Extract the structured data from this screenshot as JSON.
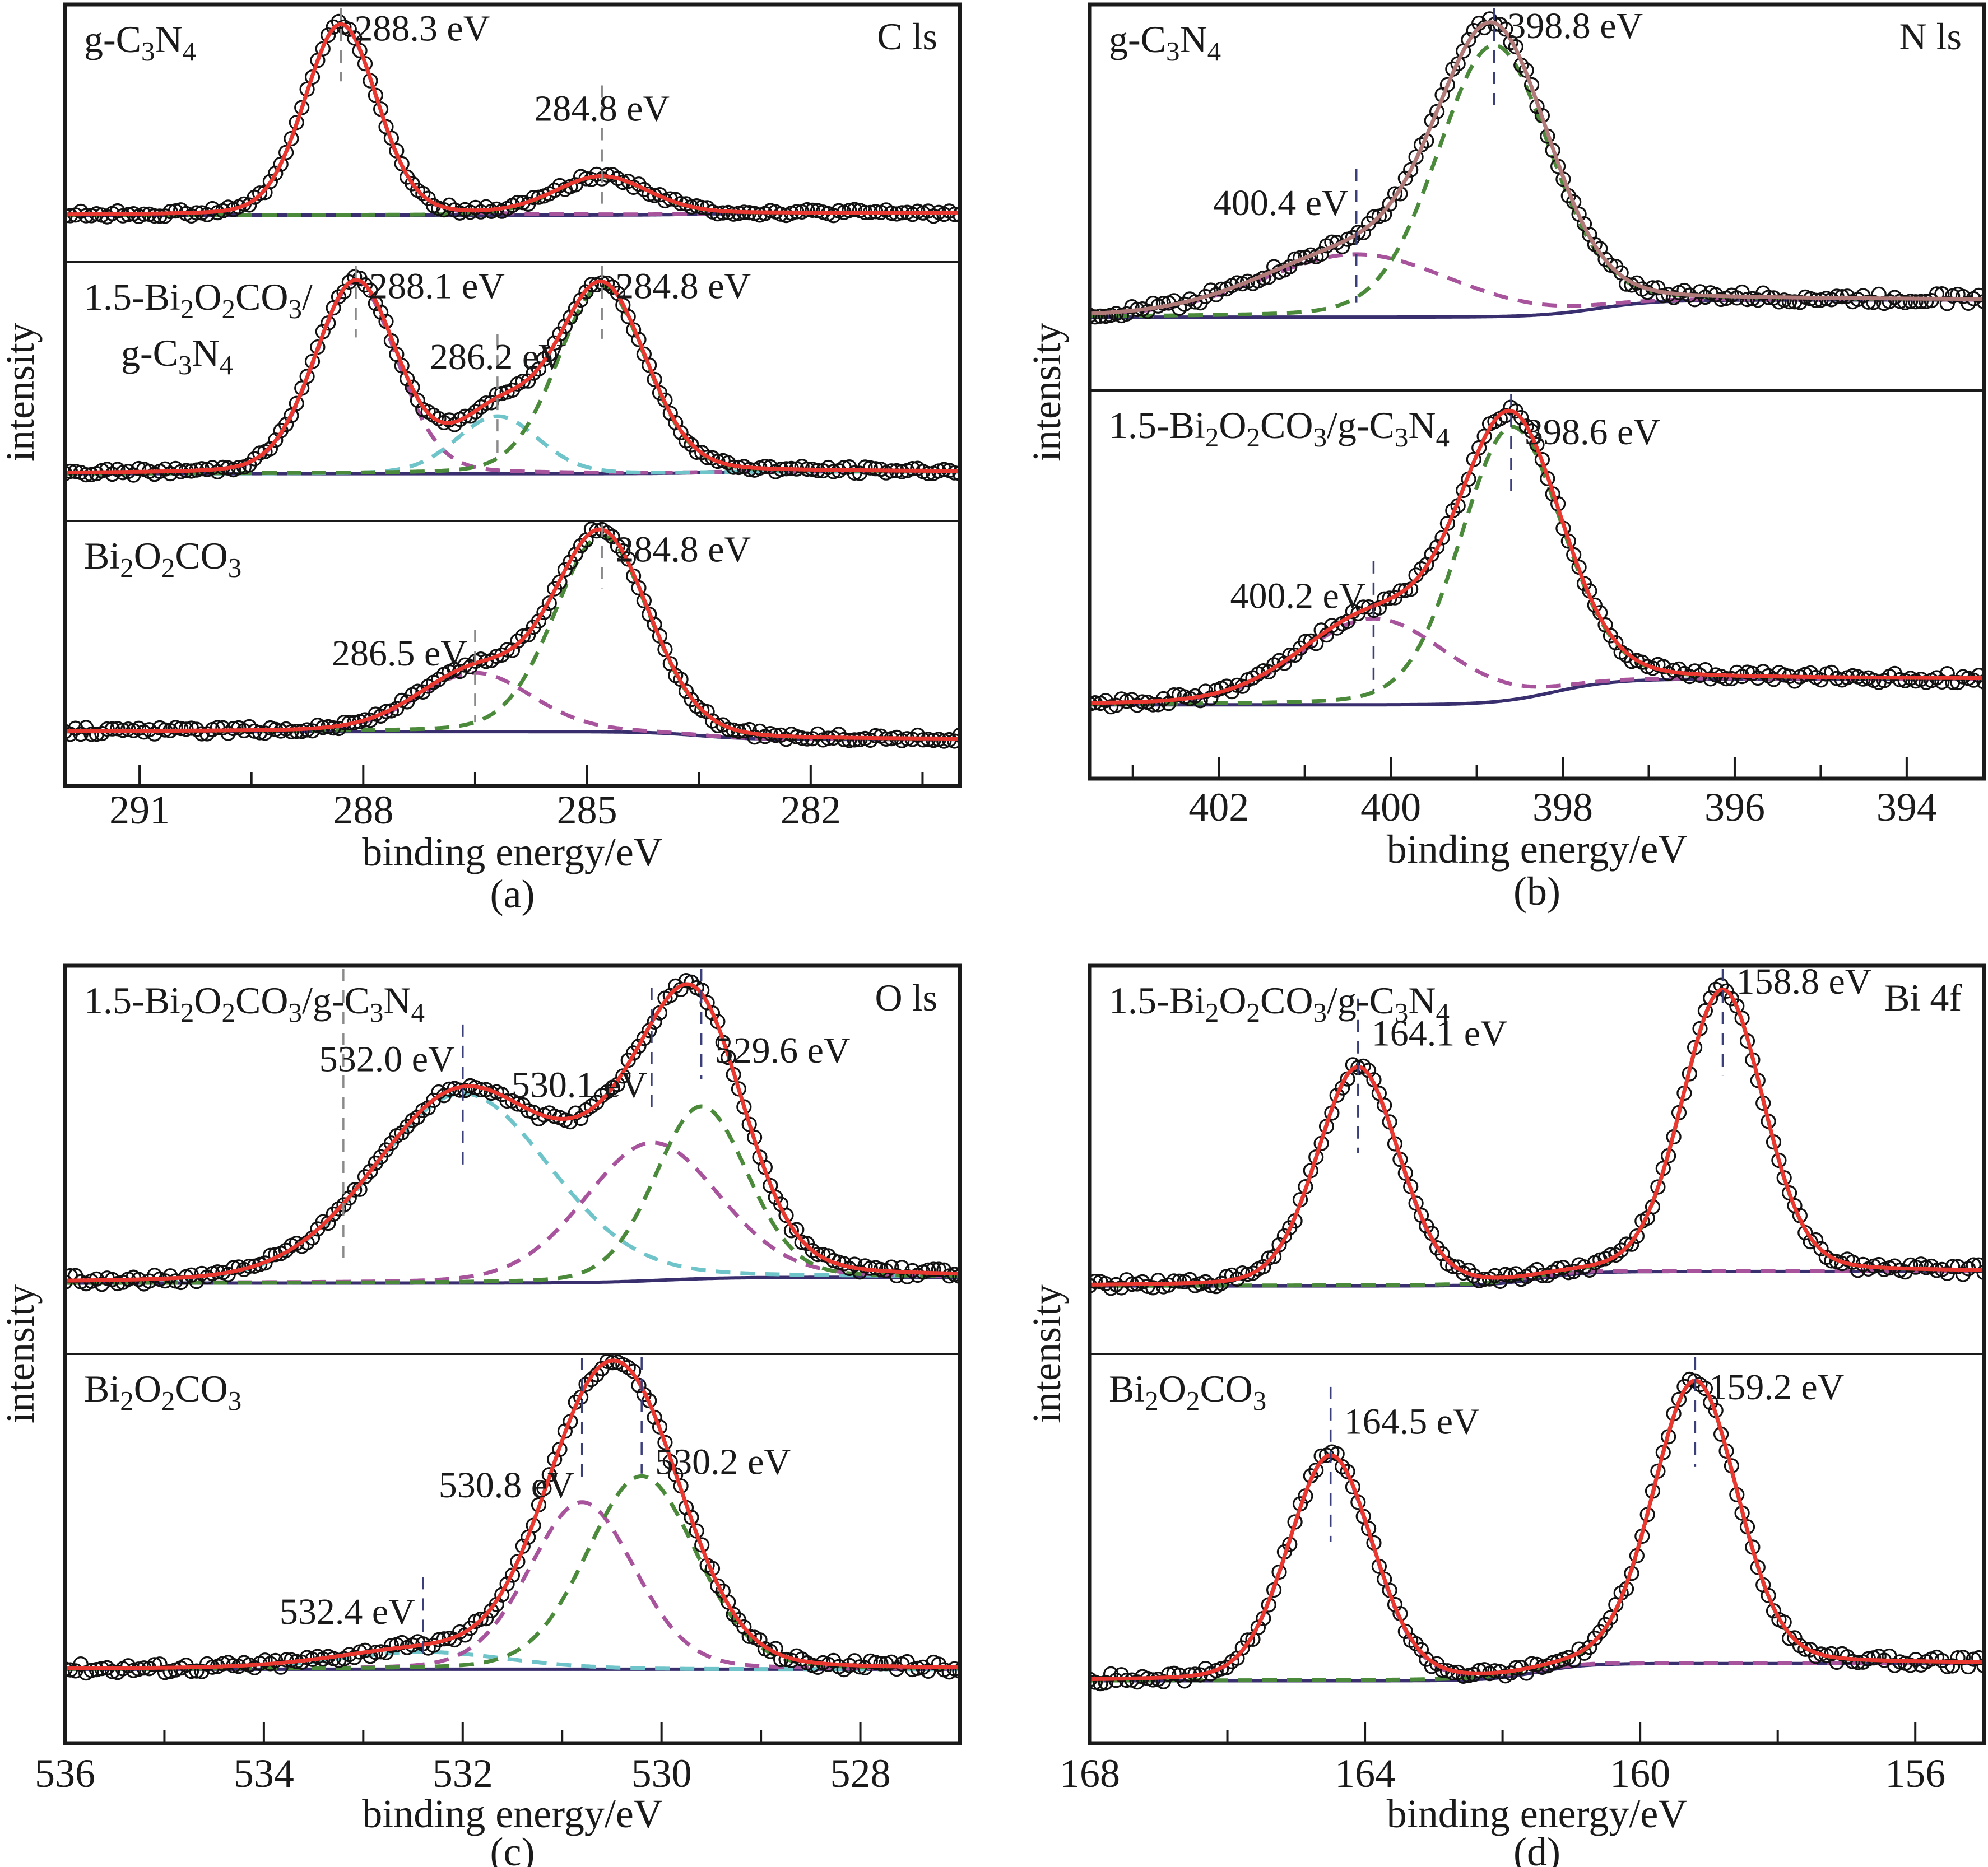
{
  "figure": {
    "y_axis_title": "intensity",
    "x_axis_title": "binding energy/eV"
  },
  "colors": {
    "points": "#111111",
    "envelope": "#e8382f",
    "envelope_alt": "#b07a78",
    "component_magenta": "#a8549c",
    "component_green": "#4a8a3a",
    "component_cyan": "#6ec4c8",
    "baseline": "#3a2f6e",
    "marker_gray": "#8a8a8a",
    "marker_navy": "#3a3f7a"
  },
  "chart_data": [
    {
      "id": "a",
      "type": "line",
      "caption": "(a)",
      "core_level": "C ls",
      "xlabel": "binding energy/eV",
      "ylabel": "intensity",
      "xlim": [
        292,
        280
      ],
      "major_ticks": [
        291,
        288,
        285,
        282
      ],
      "minor_ticks": [
        289.5,
        286.5,
        283.5,
        280.5
      ],
      "tick_labels": [
        "291",
        "288",
        "285",
        "282"
      ],
      "grid": false,
      "subplots": [
        {
          "sample": "g-C3N4",
          "sample_label_parts": [
            [
              "g-C",
              ""
            ],
            [
              "3",
              "sub"
            ],
            [
              "N",
              ""
            ],
            [
              "4",
              "sub"
            ]
          ],
          "baseline": {
            "left": 0.0,
            "right": -0.01,
            "step_at": 283.5
          },
          "envelope_color": "envelope",
          "components": [
            {
              "center": 288.3,
              "height": 1.0,
              "fwhm": 1.15,
              "color": "component_magenta"
            },
            {
              "center": 284.8,
              "height": 0.2,
              "fwhm": 1.5,
              "color": "component_green"
            }
          ],
          "markers": [
            {
              "energy": 288.3,
              "label": "288.3 eV",
              "color": "marker_gray",
              "label_side": "right",
              "label_level": 0.97
            },
            {
              "energy": 284.8,
              "label": "284.8 eV",
              "color": "marker_gray",
              "label_side": "center",
              "label_level": 0.55
            }
          ]
        },
        {
          "sample": "1.5-Bi2O2CO3/g-C3N4",
          "sample_label_parts": [
            [
              "1.5-Bi",
              ""
            ],
            [
              "2",
              "sub"
            ],
            [
              "O",
              ""
            ],
            [
              "2",
              "sub"
            ],
            [
              "CO",
              ""
            ],
            [
              "3",
              "sub"
            ],
            [
              "/",
              ""
            ]
          ],
          "sample_label_line2": [
            [
              "g-C",
              ""
            ],
            [
              "3",
              "sub"
            ],
            [
              "N",
              ""
            ],
            [
              "4",
              "sub"
            ]
          ],
          "baseline": {
            "left": 0.0,
            "right": -0.01,
            "step_at": 283.5
          },
          "envelope_color": "envelope",
          "components": [
            {
              "center": 288.1,
              "height": 1.0,
              "fwhm": 1.3,
              "color": "component_magenta"
            },
            {
              "center": 286.2,
              "height": 0.3,
              "fwhm": 1.3,
              "color": "component_cyan"
            },
            {
              "center": 284.8,
              "height": 0.98,
              "fwhm": 1.4,
              "color": "component_green"
            }
          ],
          "markers": [
            {
              "energy": 288.1,
              "label": "288.1 eV",
              "color": "marker_gray",
              "label_side": "right",
              "label_level": 0.97
            },
            {
              "energy": 286.2,
              "label": "286.2 eV",
              "color": "marker_gray",
              "label_side": "center",
              "label_level": 0.6
            },
            {
              "energy": 284.8,
              "label": "284.8 eV",
              "color": "marker_gray",
              "label_side": "right",
              "label_level": 0.97
            }
          ]
        },
        {
          "sample": "Bi2O2CO3",
          "sample_label_parts": [
            [
              "Bi",
              ""
            ],
            [
              "2",
              "sub"
            ],
            [
              "O",
              ""
            ],
            [
              "2",
              "sub"
            ],
            [
              "CO",
              ""
            ],
            [
              "3",
              "sub"
            ]
          ],
          "baseline": {
            "left": -0.02,
            "right": 0.02,
            "step_at": 283.5
          },
          "envelope_color": "envelope",
          "components": [
            {
              "center": 286.5,
              "height": 0.3,
              "fwhm": 1.8,
              "color": "component_magenta"
            },
            {
              "center": 284.8,
              "height": 1.0,
              "fwhm": 1.5,
              "color": "component_green"
            }
          ],
          "markers": [
            {
              "energy": 286.5,
              "label": "286.5 eV",
              "color": "marker_gray",
              "label_side": "left",
              "label_level": 0.42
            },
            {
              "energy": 284.8,
              "label": "284.8 eV",
              "color": "marker_gray",
              "label_side": "right",
              "label_level": 0.95
            }
          ]
        }
      ]
    },
    {
      "id": "b",
      "type": "line",
      "caption": "(b)",
      "core_level": "N ls",
      "xlabel": "binding energy/eV",
      "ylabel": "intensity",
      "xlim": [
        403.5,
        393.1
      ],
      "major_ticks": [
        402,
        400,
        398,
        396,
        394
      ],
      "minor_ticks": [
        403,
        401,
        399,
        397,
        395
      ],
      "tick_labels": [
        "402",
        "400",
        "398",
        "396",
        "394"
      ],
      "grid": false,
      "subplots": [
        {
          "sample": "g-C3N4",
          "sample_label_parts": [
            [
              "g-C",
              ""
            ],
            [
              "3",
              "sub"
            ],
            [
              "N",
              ""
            ],
            [
              "4",
              "sub"
            ]
          ],
          "baseline": {
            "left": 0.06,
            "right": 0.0,
            "step_at": 397.6
          },
          "envelope_color": "envelope_alt",
          "components": [
            {
              "center": 400.4,
              "height": 0.22,
              "fwhm": 2.6,
              "color": "component_magenta"
            },
            {
              "center": 398.8,
              "height": 0.95,
              "fwhm": 1.55,
              "color": "component_green"
            }
          ],
          "markers": [
            {
              "energy": 398.8,
              "label": "398.8 eV",
              "color": "marker_navy",
              "label_side": "right",
              "label_level": 1.02
            },
            {
              "energy": 400.4,
              "label": "400.4 eV",
              "color": "marker_navy",
              "label_side": "left",
              "label_level": 0.4
            }
          ]
        },
        {
          "sample": "1.5-Bi2O2CO3/g-C3N4",
          "sample_label_parts": [
            [
              "1.5-Bi",
              ""
            ],
            [
              "2",
              "sub"
            ],
            [
              "O",
              ""
            ],
            [
              "2",
              "sub"
            ],
            [
              "CO",
              ""
            ],
            [
              "3",
              "sub"
            ],
            [
              "/g-C",
              ""
            ],
            [
              "3",
              "sub"
            ],
            [
              "N",
              ""
            ],
            [
              "4",
              "sub"
            ]
          ],
          "baseline": {
            "left": 0.09,
            "right": 0.0,
            "step_at": 398.1
          },
          "envelope_color": "envelope",
          "components": [
            {
              "center": 400.2,
              "height": 0.3,
              "fwhm": 2.0,
              "color": "component_magenta"
            },
            {
              "center": 398.6,
              "height": 0.95,
              "fwhm": 1.4,
              "color": "component_green"
            }
          ],
          "markers": [
            {
              "energy": 398.6,
              "label": "398.6 eV",
              "color": "marker_navy",
              "label_side": "right",
              "label_level": 0.95
            },
            {
              "energy": 400.2,
              "label": "400.2 eV",
              "color": "marker_navy",
              "label_side": "left",
              "label_level": 0.38
            }
          ]
        }
      ]
    },
    {
      "id": "c",
      "type": "line",
      "caption": "(c)",
      "core_level": "O ls",
      "xlabel": "binding energy/eV",
      "ylabel": "intensity",
      "xlim": [
        536,
        527
      ],
      "major_ticks": [
        536,
        534,
        532,
        530,
        528
      ],
      "minor_ticks": [
        535,
        533,
        531,
        529
      ],
      "tick_labels": [
        "536",
        "534",
        "532",
        "530",
        "528"
      ],
      "grid": false,
      "subplots": [
        {
          "sample": "1.5-Bi2O2CO3/g-C3N4",
          "sample_label_parts": [
            [
              "1.5-Bi",
              ""
            ],
            [
              "2",
              "sub"
            ],
            [
              "O",
              ""
            ],
            [
              "2",
              "sub"
            ],
            [
              "CO",
              ""
            ],
            [
              "3",
              "sub"
            ],
            [
              "/g-C",
              ""
            ],
            [
              "3",
              "sub"
            ],
            [
              "N",
              ""
            ],
            [
              "4",
              "sub"
            ]
          ],
          "baseline": {
            "left": 0.01,
            "right": -0.01,
            "step_at": 530.0
          },
          "envelope_color": "envelope",
          "components": [
            {
              "center": 532.0,
              "height": 0.66,
              "fwhm": 2.1,
              "color": "component_cyan"
            },
            {
              "center": 530.1,
              "height": 0.48,
              "fwhm": 1.6,
              "color": "component_magenta"
            },
            {
              "center": 529.6,
              "height": 0.6,
              "fwhm": 1.1,
              "color": "component_green"
            }
          ],
          "markers": [
            {
              "energy": 533.2,
              "label": "",
              "color": "marker_gray",
              "label_side": "none",
              "label_level": 1.05
            },
            {
              "energy": 532.0,
              "label": "532.0 eV",
              "color": "marker_navy",
              "label_side": "left",
              "label_level": 0.77
            },
            {
              "energy": 530.1,
              "label": "530.1 eV",
              "color": "marker_navy",
              "label_side": "center-left",
              "label_level": 0.68
            },
            {
              "energy": 529.6,
              "label": "529.6 eV",
              "color": "marker_navy",
              "label_side": "right",
              "label_level": 0.8
            }
          ]
        },
        {
          "sample": "Bi2O2CO3",
          "sample_label_parts": [
            [
              "Bi",
              ""
            ],
            [
              "2",
              "sub"
            ],
            [
              "O",
              ""
            ],
            [
              "2",
              "sub"
            ],
            [
              "CO",
              ""
            ],
            [
              "3",
              "sub"
            ]
          ],
          "baseline": {
            "left": 0.0,
            "right": 0.0,
            "step_at": 530.5
          },
          "envelope_color": "envelope",
          "components": [
            {
              "center": 532.4,
              "height": 0.06,
              "fwhm": 2.0,
              "color": "component_cyan"
            },
            {
              "center": 530.8,
              "height": 0.58,
              "fwhm": 1.25,
              "color": "component_magenta"
            },
            {
              "center": 530.2,
              "height": 0.67,
              "fwhm": 1.3,
              "color": "component_green"
            }
          ],
          "markers": [
            {
              "energy": 530.8,
              "label": "530.8 eV",
              "color": "marker_navy",
              "label_side": "left",
              "label_level": 0.64
            },
            {
              "energy": 530.2,
              "label": "530.2 eV",
              "color": "marker_navy",
              "label_side": "right",
              "label_level": 0.72
            },
            {
              "energy": 532.4,
              "label": "532.4 eV",
              "color": "marker_navy",
              "label_side": "left",
              "label_level": 0.2
            }
          ]
        }
      ]
    },
    {
      "id": "d",
      "type": "line",
      "caption": "(d)",
      "core_level": "Bi 4f",
      "xlabel": "binding energy/eV",
      "ylabel": "intensity",
      "xlim": [
        168,
        155
      ],
      "major_ticks": [
        168,
        164,
        160,
        156
      ],
      "minor_ticks": [
        166,
        162,
        158
      ],
      "tick_labels": [
        "168",
        "164",
        "160",
        "156"
      ],
      "grid": false,
      "subplots": [
        {
          "sample": "1.5-Bi2O2CO3/g-C3N4",
          "sample_label_parts": [
            [
              "1.5-Bi",
              ""
            ],
            [
              "2",
              "sub"
            ],
            [
              "O",
              ""
            ],
            [
              "2",
              "sub"
            ],
            [
              "CO",
              ""
            ],
            [
              "3",
              "sub"
            ],
            [
              "/g-C",
              ""
            ],
            [
              "3",
              "sub"
            ],
            [
              "N",
              ""
            ],
            [
              "4",
              "sub"
            ]
          ],
          "baseline": {
            "left": 0.03,
            "right": -0.02,
            "step_at": 161.5
          },
          "envelope_color": "envelope",
          "components": [
            {
              "center": 164.1,
              "height": 0.76,
              "fwhm": 1.4,
              "color": "component_magenta"
            },
            {
              "center": 158.8,
              "height": 0.98,
              "fwhm": 1.4,
              "color": "component_green"
            }
          ],
          "markers": [
            {
              "energy": 164.1,
              "label": "164.1 eV",
              "color": "marker_navy",
              "label_side": "right",
              "label_level": 0.86
            },
            {
              "energy": 158.8,
              "label": "158.8 eV",
              "color": "marker_navy",
              "label_side": "right",
              "label_level": 1.04
            }
          ]
        },
        {
          "sample": "Bi2O2CO3",
          "sample_label_parts": [
            [
              "Bi",
              ""
            ],
            [
              "2",
              "sub"
            ],
            [
              "O",
              ""
            ],
            [
              "2",
              "sub"
            ],
            [
              "CO",
              ""
            ],
            [
              "3",
              "sub"
            ]
          ],
          "baseline": {
            "left": 0.02,
            "right": -0.04,
            "step_at": 161.5
          },
          "envelope_color": "envelope",
          "components": [
            {
              "center": 164.5,
              "height": 0.78,
              "fwhm": 1.45,
              "color": "component_magenta"
            },
            {
              "center": 159.2,
              "height": 0.98,
              "fwhm": 1.45,
              "color": "component_green"
            }
          ],
          "markers": [
            {
              "energy": 164.5,
              "label": "164.5 eV",
              "color": "marker_navy",
              "label_side": "right",
              "label_level": 0.86
            },
            {
              "energy": 159.2,
              "label": "159.2 eV",
              "color": "marker_navy",
              "label_side": "right",
              "label_level": 0.98
            }
          ]
        }
      ]
    }
  ]
}
